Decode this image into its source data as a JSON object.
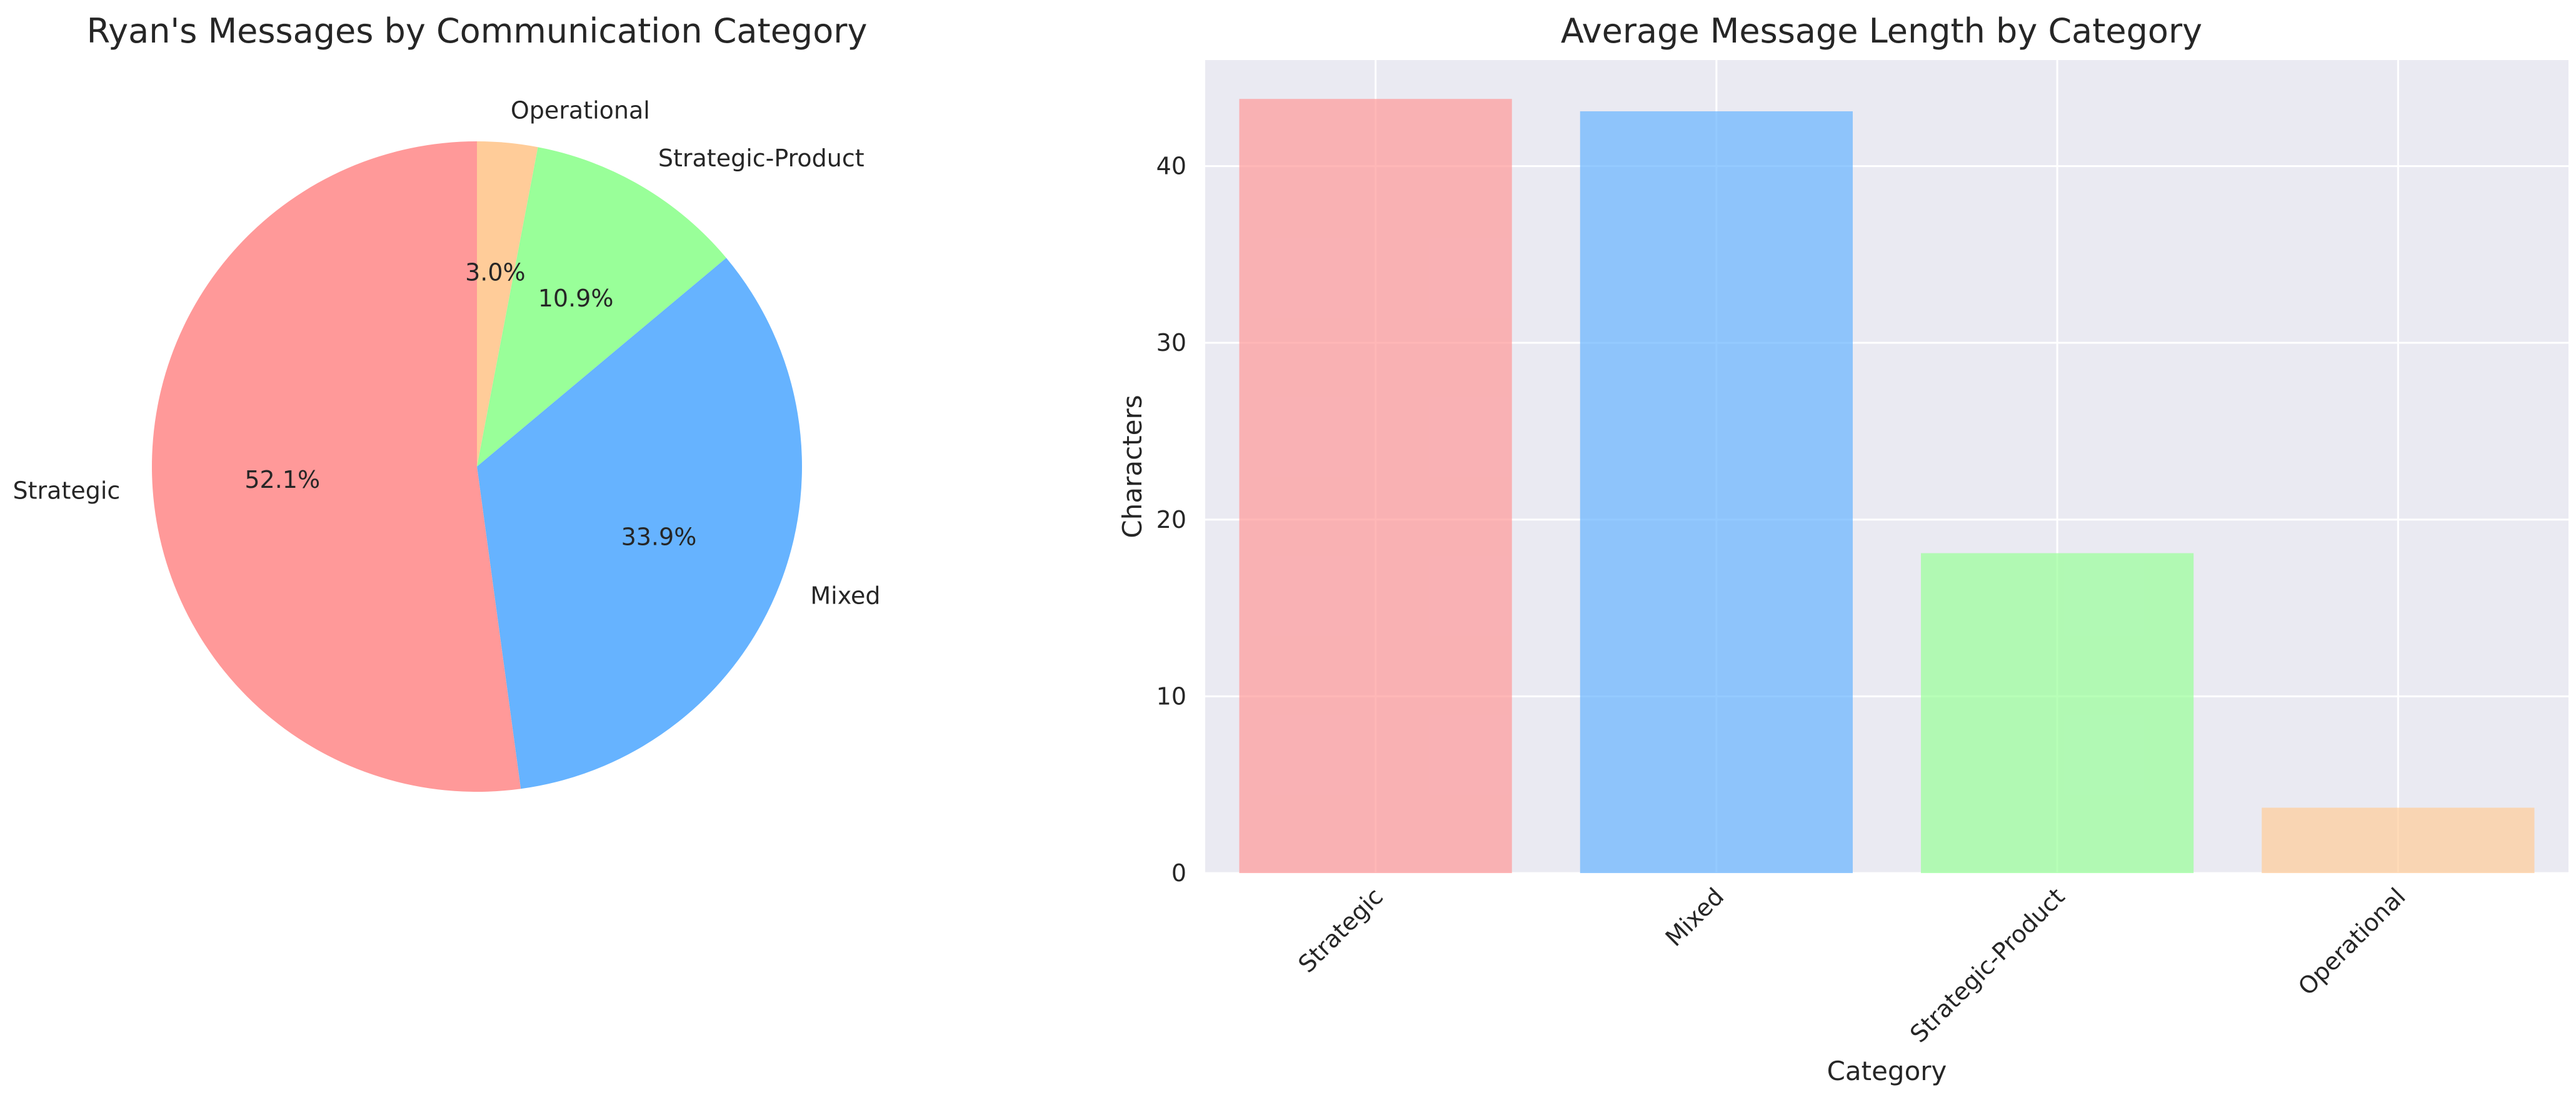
{
  "chart_data": [
    {
      "type": "pie",
      "title": "Ryan's Messages by Communication Category",
      "categories": [
        "Operational",
        "Strategic-Product",
        "Mixed",
        "Strategic"
      ],
      "values": [
        3.0,
        10.9,
        33.9,
        52.1
      ],
      "value_labels": [
        "3.0%",
        "10.9%",
        "33.9%",
        "52.1%"
      ],
      "colors": [
        "#ffcc99",
        "#99ff99",
        "#66b3ff",
        "#ff9999"
      ],
      "start_angle_deg": 90,
      "direction": "clockwise"
    },
    {
      "type": "bar",
      "title": "Average Message Length by Category",
      "categories": [
        "Strategic",
        "Mixed",
        "Strategic-Product",
        "Operational"
      ],
      "values": [
        43.8,
        43.1,
        18.1,
        3.7
      ],
      "colors": [
        "#ff9999",
        "#66b3ff",
        "#99ff99",
        "#ffcc99"
      ],
      "xlabel": "Category",
      "ylabel": "Characters",
      "ylim": [
        0,
        46
      ],
      "yticks": [
        0,
        10,
        20,
        30,
        40
      ],
      "grid": true,
      "xtick_rotation_deg": 45
    }
  ]
}
